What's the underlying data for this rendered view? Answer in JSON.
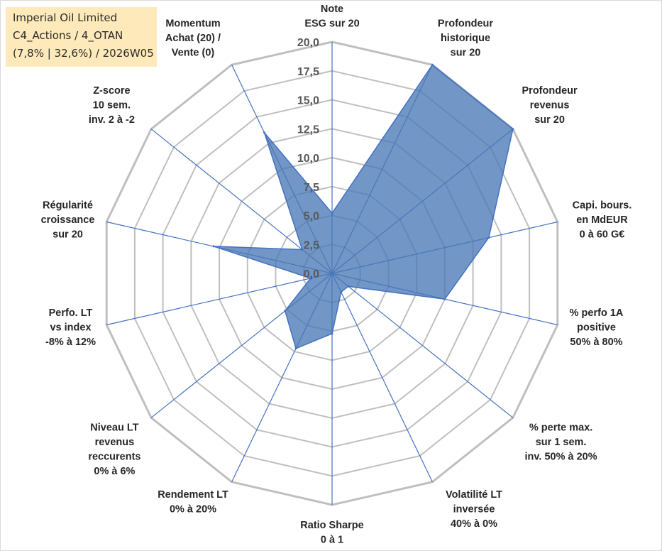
{
  "info_box": {
    "line1": "Imperial Oil Limited",
    "line2": "C4_Actions / 4_OTAN",
    "line3": "(7,8% | 32,6%) / 2026W05"
  },
  "colors": {
    "grid": "#bfbfbf",
    "spoke": "#4472c4",
    "fill": "#4a79b5",
    "text": "#262626",
    "tick_text": "#595959",
    "info_bg": "#fde9b9"
  },
  "chart_data": {
    "type": "radar",
    "title": "",
    "rmin": 0,
    "rmax": 20,
    "tick_values": [
      0,
      2.5,
      5,
      7.5,
      10,
      12.5,
      15,
      17.5,
      20
    ],
    "tick_labels": [
      "0,0",
      "2,5",
      "5,0",
      "7,5",
      "10,0",
      "12,5",
      "15,0",
      "17,5",
      "20,0"
    ],
    "grid": true,
    "legend": "none",
    "axes": [
      {
        "label": [
          "Note",
          "ESG sur 20"
        ],
        "value": 5.2
      },
      {
        "label": [
          "Profondeur",
          "historique",
          "sur 20"
        ],
        "value": 20.0
      },
      {
        "label": [
          "Profondeur",
          "revenus",
          "sur 20"
        ],
        "value": 20.0
      },
      {
        "label": [
          "Capi. bours.",
          "en MdEUR",
          "0 à 60 G€"
        ],
        "value": 13.9
      },
      {
        "label": [
          "% perfo 1A",
          "positive",
          "50% à 80%"
        ],
        "value": 10.0
      },
      {
        "label": [
          "% perte max.",
          "sur 1 sem.",
          "inv. 50% à 20%"
        ],
        "value": 1.8
      },
      {
        "label": [
          "Volatilité LT",
          "inversée",
          "40% à 0%"
        ],
        "value": 1.8
      },
      {
        "label": [
          "Ratio Sharpe",
          "0 à 1"
        ],
        "value": 5.2
      },
      {
        "label": [
          "Rendement LT",
          "0% à 20%"
        ],
        "value": 7.2
      },
      {
        "label": [
          "Niveau LT",
          "revenus",
          "reccurents",
          "0% à 6%"
        ],
        "value": 5.2
      },
      {
        "label": [
          "Perfo. LT",
          "vs index",
          "-8% à 12%"
        ],
        "value": 1.9
      },
      {
        "label": [
          "Régularité",
          "croissance",
          "sur 20"
        ],
        "value": 10.5
      },
      {
        "label": [
          "Z-score",
          "10 sem.",
          "inv. 2 à -2"
        ],
        "value": 3.3
      },
      {
        "label": [
          "Momentum",
          "Achat (20) /",
          "Vente (0)"
        ],
        "value": 13.5
      }
    ]
  }
}
